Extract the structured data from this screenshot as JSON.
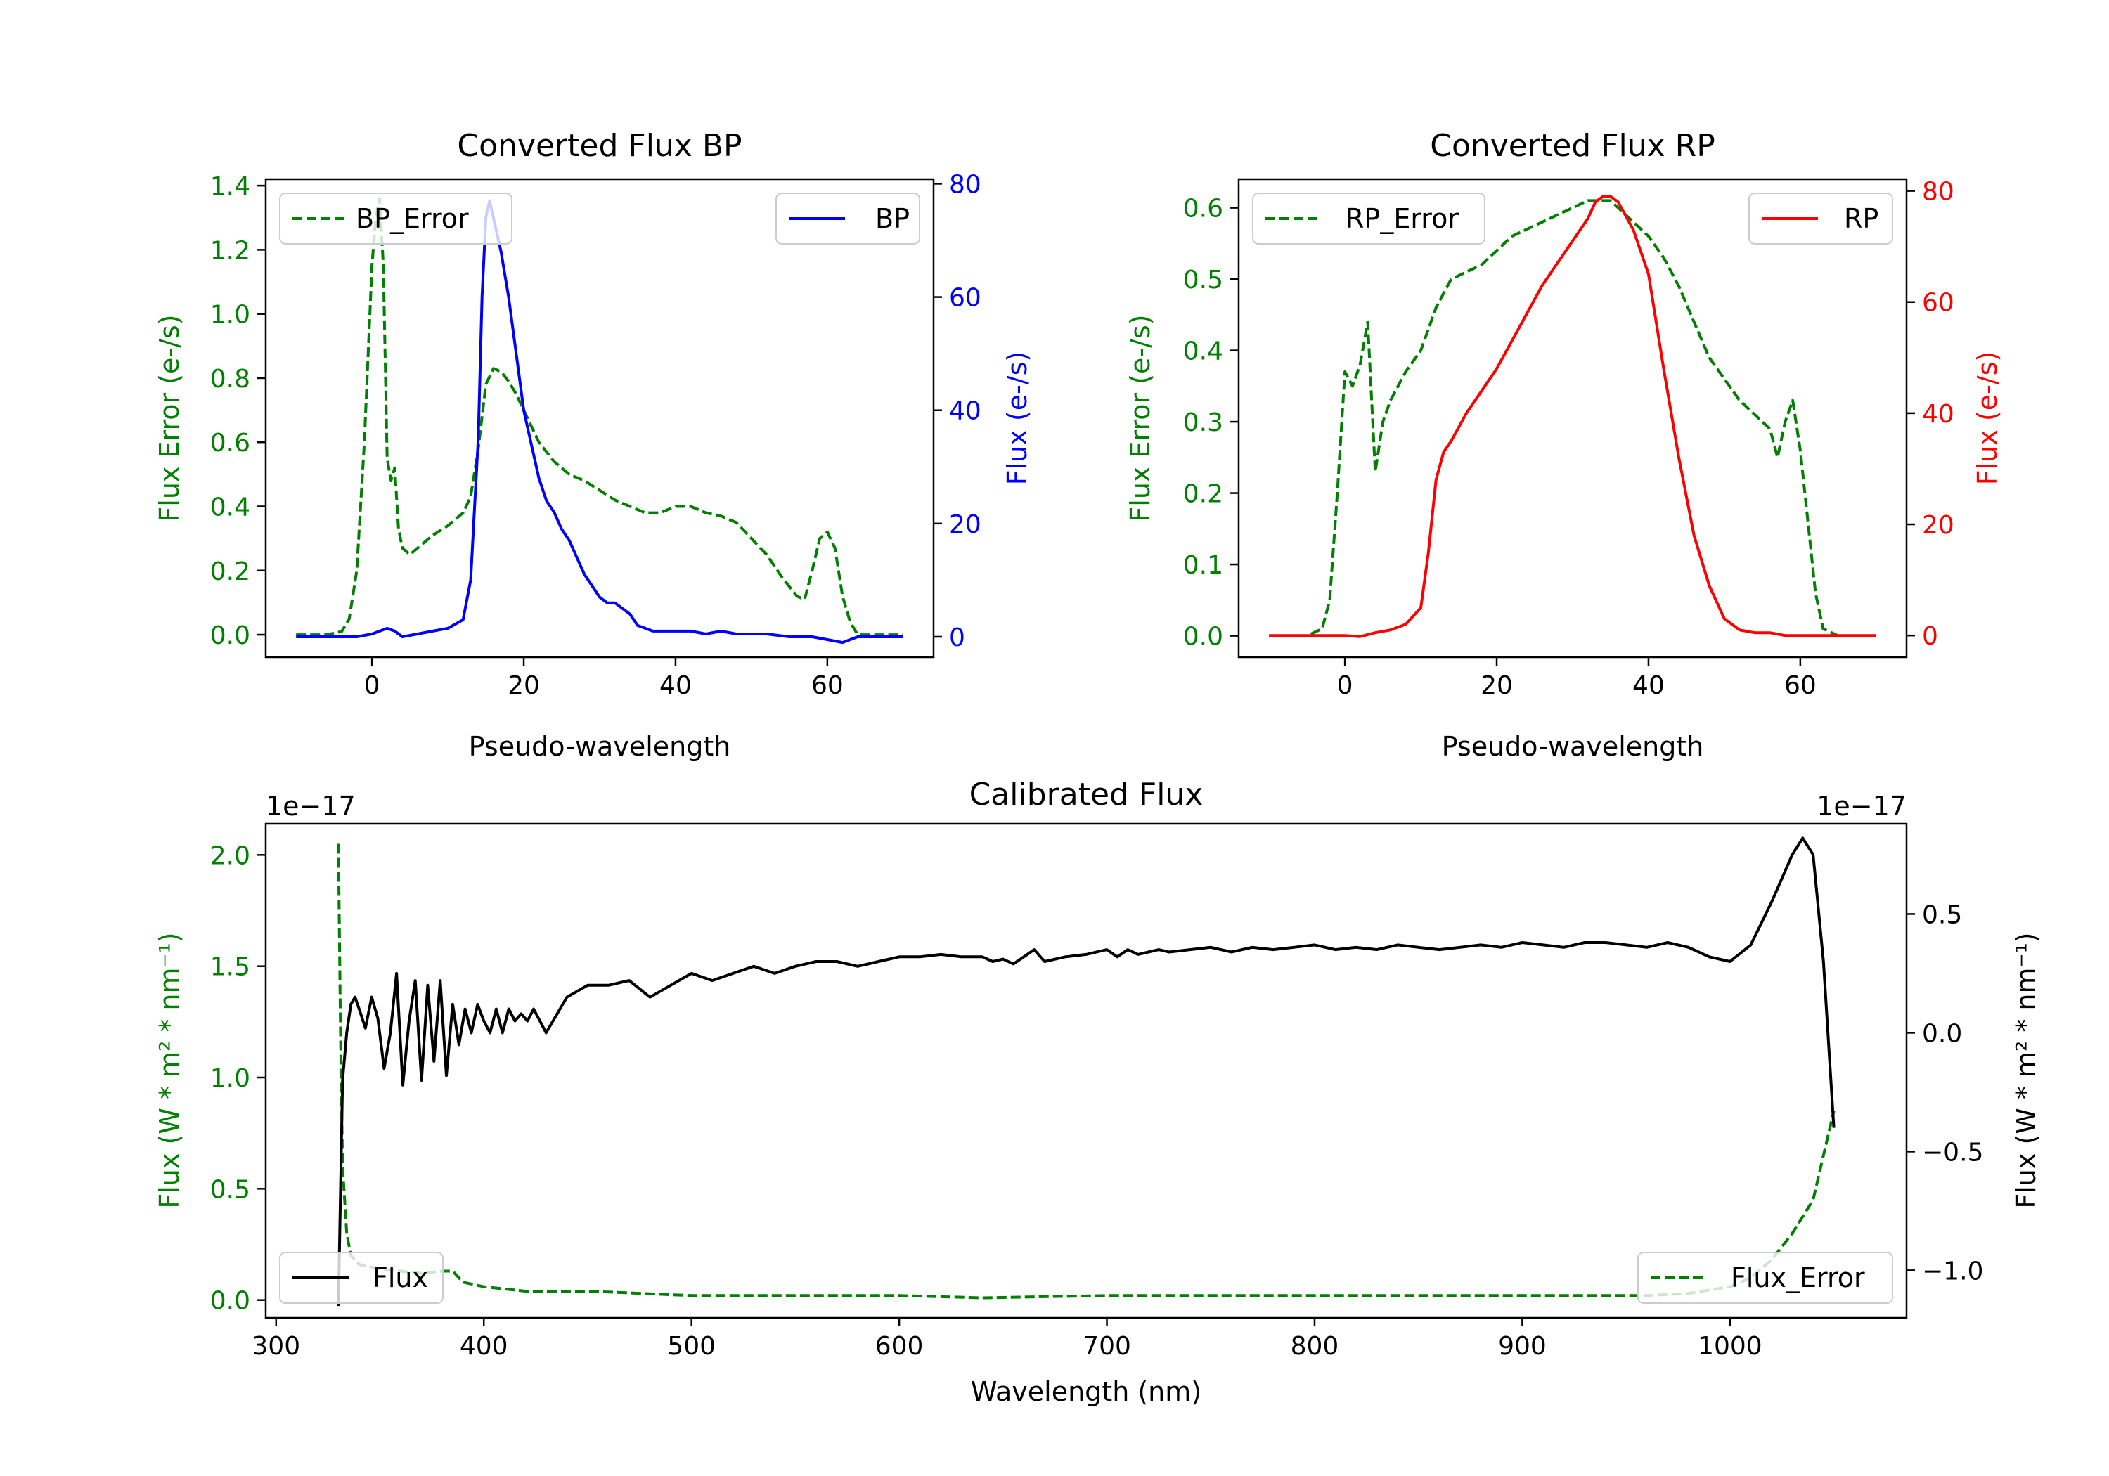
{
  "colors": {
    "bp": "#0000ff",
    "rp": "#ff0000",
    "error": "#008000",
    "flux": "#000000",
    "axis": "#000000"
  },
  "chart_data": [
    {
      "type": "line",
      "id": "bp",
      "title": "Converted Flux BP",
      "xlabel": "Pseudo-wavelength",
      "ylabel_left": "Flux Error (e-/s)",
      "ylabel_right": "Flux (e-/s)",
      "xlim": [
        -14,
        74
      ],
      "xticks": [
        0,
        20,
        40,
        60
      ],
      "ylim_left": [
        -0.07,
        1.42
      ],
      "yticks_left": [
        0.0,
        0.2,
        0.4,
        0.6,
        0.8,
        1.0,
        1.2,
        1.4
      ],
      "ytick_labels_left": [
        "0.0",
        "0.2",
        "0.4",
        "0.6",
        "0.8",
        "1.0",
        "1.2",
        "1.4"
      ],
      "ylim_right": [
        -3.6,
        80.8
      ],
      "yticks_right": [
        0,
        20,
        40,
        60,
        80
      ],
      "ytick_labels_right": [
        "0",
        "20",
        "40",
        "60",
        "80"
      ],
      "legend_left": "BP_Error",
      "legend_right": "BP",
      "series": [
        {
          "name": "BP_Error",
          "axis": "left",
          "style": "dashed",
          "color": "error",
          "x": [
            -10,
            -6,
            -4,
            -3,
            -2,
            -1,
            0,
            0.5,
            1,
            1.5,
            2,
            2.5,
            3,
            3.5,
            4,
            5,
            6,
            8,
            10,
            12,
            13,
            14,
            15,
            16,
            17,
            18,
            19,
            20,
            22,
            24,
            26,
            28,
            30,
            32,
            34,
            36,
            38,
            40,
            42,
            44,
            46,
            48,
            50,
            52,
            54,
            56,
            57,
            58,
            59,
            60,
            61,
            62,
            63,
            64,
            66,
            70
          ],
          "values": [
            0,
            0,
            0.01,
            0.05,
            0.2,
            0.6,
            1.15,
            1.3,
            1.36,
            1.15,
            0.55,
            0.48,
            0.52,
            0.33,
            0.27,
            0.25,
            0.27,
            0.31,
            0.34,
            0.38,
            0.43,
            0.58,
            0.78,
            0.83,
            0.82,
            0.79,
            0.75,
            0.7,
            0.6,
            0.54,
            0.5,
            0.48,
            0.45,
            0.42,
            0.4,
            0.38,
            0.38,
            0.4,
            0.4,
            0.38,
            0.37,
            0.35,
            0.3,
            0.25,
            0.18,
            0.12,
            0.11,
            0.2,
            0.3,
            0.32,
            0.27,
            0.12,
            0.04,
            0,
            0,
            0
          ]
        },
        {
          "name": "BP",
          "axis": "right",
          "style": "solid",
          "color": "bp",
          "x": [
            -10,
            -2,
            0,
            2,
            3,
            4,
            6,
            8,
            10,
            12,
            13,
            14,
            14.5,
            15,
            15.5,
            16,
            17,
            18,
            19,
            20,
            21,
            22,
            23,
            24,
            25,
            26,
            27,
            28,
            29,
            30,
            31,
            32,
            33,
            34,
            35,
            36,
            37,
            38,
            40,
            42,
            44,
            46,
            48,
            50,
            52,
            55,
            58,
            60,
            62,
            64,
            66,
            70
          ],
          "values": [
            0,
            0,
            0.5,
            1.5,
            1,
            0,
            0.5,
            1,
            1.5,
            3,
            10,
            35,
            60,
            74,
            77,
            74,
            68,
            60,
            50,
            40,
            34,
            28,
            24,
            22,
            19,
            17,
            14,
            11,
            9,
            7,
            6,
            6,
            5,
            4,
            2,
            1.5,
            1,
            1,
            1,
            1,
            0.5,
            1,
            0.5,
            0.5,
            0.5,
            0,
            0,
            -0.5,
            -1,
            0,
            0,
            0
          ]
        }
      ]
    },
    {
      "type": "line",
      "id": "rp",
      "title": "Converted Flux RP",
      "xlabel": "Pseudo-wavelength",
      "ylabel_left": "Flux Error (e-/s)",
      "ylabel_right": "Flux (e-/s)",
      "xlim": [
        -14,
        74
      ],
      "xticks": [
        0,
        20,
        40,
        60
      ],
      "ylim_left": [
        -0.03,
        0.64
      ],
      "yticks_left": [
        0.0,
        0.1,
        0.2,
        0.3,
        0.4,
        0.5,
        0.6
      ],
      "ytick_labels_left": [
        "0.0",
        "0.1",
        "0.2",
        "0.3",
        "0.4",
        "0.5",
        "0.6"
      ],
      "ylim_right": [
        -3.9,
        82.1
      ],
      "yticks_right": [
        0,
        20,
        40,
        60,
        80
      ],
      "ytick_labels_right": [
        "0",
        "20",
        "40",
        "60",
        "80"
      ],
      "legend_left": "RP_Error",
      "legend_right": "RP",
      "series": [
        {
          "name": "RP_Error",
          "axis": "left",
          "style": "dashed",
          "color": "error",
          "x": [
            -10,
            -5,
            -3,
            -2,
            -1,
            0,
            1,
            2,
            3,
            4,
            5,
            6,
            8,
            10,
            12,
            14,
            16,
            18,
            20,
            22,
            24,
            26,
            28,
            30,
            32,
            34,
            35,
            36,
            38,
            40,
            42,
            44,
            46,
            48,
            50,
            52,
            54,
            56,
            57,
            58,
            59,
            60,
            61,
            62,
            63,
            65,
            70
          ],
          "values": [
            0,
            0,
            0.01,
            0.05,
            0.2,
            0.37,
            0.35,
            0.38,
            0.44,
            0.23,
            0.3,
            0.33,
            0.37,
            0.4,
            0.46,
            0.5,
            0.51,
            0.52,
            0.54,
            0.56,
            0.57,
            0.58,
            0.59,
            0.6,
            0.61,
            0.61,
            0.61,
            0.6,
            0.58,
            0.56,
            0.53,
            0.49,
            0.44,
            0.39,
            0.36,
            0.33,
            0.31,
            0.29,
            0.25,
            0.3,
            0.33,
            0.26,
            0.16,
            0.06,
            0.01,
            0,
            0
          ]
        },
        {
          "name": "RP",
          "axis": "right",
          "style": "solid",
          "color": "rp",
          "x": [
            -10,
            0,
            2,
            4,
            6,
            8,
            10,
            11,
            12,
            13,
            14,
            16,
            18,
            20,
            22,
            24,
            26,
            28,
            30,
            32,
            33,
            34,
            35,
            36,
            38,
            40,
            42,
            44,
            46,
            48,
            50,
            52,
            54,
            56,
            58,
            60,
            62,
            66,
            70
          ],
          "values": [
            0,
            0,
            -0.2,
            0.5,
            1,
            2,
            5,
            15,
            28,
            33,
            35,
            40,
            44,
            48,
            53,
            58,
            63,
            67,
            71,
            75,
            78,
            79,
            79,
            78,
            73,
            65,
            48,
            32,
            18,
            9,
            3,
            1,
            0.5,
            0.5,
            0,
            0,
            0,
            0,
            0
          ]
        }
      ]
    },
    {
      "type": "line",
      "id": "cal",
      "title": "Calibrated Flux",
      "xlabel": "Wavelength (nm)",
      "ylabel_left": "Flux (W * m² * nm⁻¹)",
      "ylabel_right": "Flux (W * m² * nm⁻¹)",
      "offset_left": "1e−17",
      "offset_right": "1e−17",
      "xlim": [
        295,
        1085
      ],
      "xticks": [
        300,
        400,
        500,
        600,
        700,
        800,
        900,
        1000
      ],
      "ylim_left": [
        -0.08,
        2.14
      ],
      "yticks_left": [
        0.0,
        0.5,
        1.0,
        1.5,
        2.0
      ],
      "ytick_labels_left": [
        "0.0",
        "0.5",
        "1.0",
        "1.5",
        "2.0"
      ],
      "ylim_right": [
        -1.2,
        0.88
      ],
      "yticks_right": [
        -1.0,
        -0.5,
        0.0,
        0.5
      ],
      "ytick_labels_right": [
        "−1.0",
        "−0.5",
        "0.0",
        "0.5"
      ],
      "legend_left": "Flux",
      "legend_right": "Flux_Error",
      "series": [
        {
          "name": "Flux_Error",
          "axis": "left",
          "style": "dashed",
          "color": "error",
          "x": [
            330,
            331,
            332,
            334,
            336,
            340,
            350,
            360,
            370,
            380,
            385,
            390,
            400,
            420,
            450,
            500,
            600,
            640,
            700,
            800,
            900,
            960,
            980,
            1000,
            1010,
            1020,
            1030,
            1040,
            1045,
            1050
          ],
          "values": [
            2.05,
            1.2,
            0.6,
            0.3,
            0.2,
            0.16,
            0.14,
            0.13,
            0.12,
            0.13,
            0.13,
            0.08,
            0.06,
            0.04,
            0.04,
            0.02,
            0.02,
            0.01,
            0.02,
            0.02,
            0.02,
            0.02,
            0.03,
            0.06,
            0.1,
            0.18,
            0.3,
            0.45,
            0.65,
            0.85
          ]
        },
        {
          "name": "Flux",
          "axis": "right",
          "style": "solid",
          "color": "flux",
          "x": [
            330,
            332,
            334,
            336,
            338,
            340,
            343,
            346,
            349,
            352,
            355,
            358,
            361,
            364,
            367,
            370,
            373,
            376,
            379,
            382,
            385,
            388,
            391,
            394,
            397,
            400,
            403,
            406,
            409,
            412,
            415,
            418,
            421,
            424,
            427,
            430,
            440,
            450,
            460,
            470,
            480,
            490,
            500,
            510,
            520,
            530,
            540,
            550,
            560,
            570,
            580,
            590,
            600,
            610,
            620,
            630,
            640,
            645,
            650,
            655,
            660,
            665,
            670,
            680,
            690,
            700,
            705,
            710,
            715,
            720,
            725,
            730,
            740,
            750,
            760,
            770,
            780,
            790,
            800,
            810,
            820,
            830,
            840,
            850,
            860,
            870,
            880,
            890,
            900,
            910,
            920,
            930,
            940,
            950,
            960,
            970,
            980,
            990,
            1000,
            1010,
            1020,
            1030,
            1035,
            1040,
            1045,
            1050
          ],
          "values": [
            -1.15,
            -0.2,
            0.0,
            0.12,
            0.15,
            0.1,
            0.02,
            0.15,
            0.06,
            -0.15,
            0.0,
            0.25,
            -0.22,
            0.05,
            0.22,
            -0.2,
            0.2,
            -0.12,
            0.22,
            -0.18,
            0.12,
            -0.05,
            0.1,
            0.0,
            0.12,
            0.05,
            0.0,
            0.1,
            0.0,
            0.1,
            0.05,
            0.08,
            0.05,
            0.1,
            0.05,
            0.0,
            0.15,
            0.2,
            0.2,
            0.22,
            0.15,
            0.2,
            0.25,
            0.22,
            0.25,
            0.28,
            0.25,
            0.28,
            0.3,
            0.3,
            0.28,
            0.3,
            0.32,
            0.32,
            0.33,
            0.32,
            0.32,
            0.3,
            0.31,
            0.29,
            0.32,
            0.35,
            0.3,
            0.32,
            0.33,
            0.35,
            0.32,
            0.35,
            0.33,
            0.34,
            0.35,
            0.34,
            0.35,
            0.36,
            0.34,
            0.36,
            0.35,
            0.36,
            0.37,
            0.35,
            0.36,
            0.35,
            0.37,
            0.36,
            0.35,
            0.36,
            0.37,
            0.36,
            0.38,
            0.37,
            0.36,
            0.38,
            0.38,
            0.37,
            0.36,
            0.38,
            0.36,
            0.32,
            0.3,
            0.37,
            0.55,
            0.75,
            0.82,
            0.75,
            0.3,
            -0.4
          ]
        }
      ]
    }
  ]
}
